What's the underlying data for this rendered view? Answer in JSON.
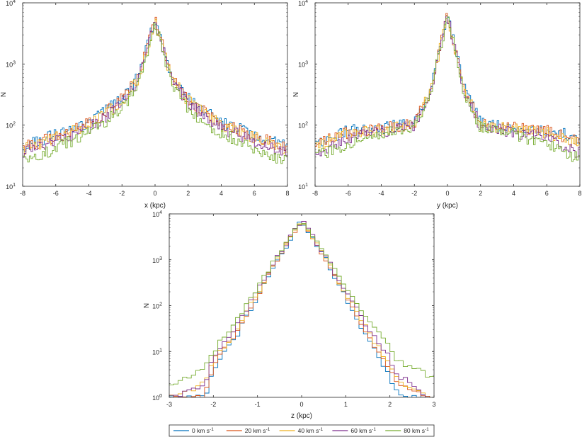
{
  "legend": [
    {
      "name": "0 km s",
      "sup": "-1",
      "color": "#0072BD"
    },
    {
      "name": "20 km s",
      "sup": "-1",
      "color": "#D95319"
    },
    {
      "name": "40 km s",
      "sup": "-1",
      "color": "#EDB120"
    },
    {
      "name": "60 km s",
      "sup": "-1",
      "color": "#7E2F8E"
    },
    {
      "name": "80 km s",
      "sup": "-1",
      "color": "#77AC30"
    }
  ],
  "chart_data": [
    {
      "type": "histogram-stairs",
      "xlabel": "x (kpc)",
      "ylabel": "N",
      "xlim": [
        -8,
        8
      ],
      "ylim": [
        10,
        10000
      ],
      "yscale": "log",
      "xticks": [
        "-8",
        "-6",
        "-4",
        "-2",
        "0",
        "2",
        "4",
        "6",
        "8"
      ],
      "yticks": [
        {
          "base": "10",
          "exp": "1"
        },
        {
          "base": "10",
          "exp": "2"
        },
        {
          "base": "10",
          "exp": "3"
        },
        {
          "base": "10",
          "exp": "4"
        }
      ],
      "x_knots": [
        -8,
        -6,
        -4,
        -3,
        -2,
        -1,
        0,
        1,
        2,
        3,
        4,
        6,
        8
      ],
      "series": [
        {
          "name": "0 km s-1",
          "n": [
            45,
            70,
            110,
            170,
            280,
            620,
            5500,
            620,
            280,
            170,
            110,
            70,
            45
          ]
        },
        {
          "name": "20 km s-1",
          "n": [
            42,
            66,
            105,
            160,
            270,
            600,
            5300,
            600,
            270,
            160,
            105,
            66,
            42
          ]
        },
        {
          "name": "40 km s-1",
          "n": [
            40,
            62,
            100,
            150,
            250,
            570,
            5100,
            570,
            250,
            150,
            100,
            62,
            40
          ]
        },
        {
          "name": "60 km s-1",
          "n": [
            35,
            55,
            90,
            135,
            230,
            540,
            5000,
            540,
            230,
            135,
            90,
            55,
            35
          ]
        },
        {
          "name": "80 km s-1",
          "n": [
            25,
            42,
            75,
            110,
            190,
            470,
            4800,
            470,
            190,
            110,
            75,
            42,
            25
          ]
        }
      ]
    },
    {
      "type": "histogram-stairs",
      "xlabel": "y (kpc)",
      "ylabel": "N",
      "xlim": [
        -8,
        8
      ],
      "ylim": [
        10,
        10000
      ],
      "yscale": "log",
      "xticks": [
        "-8",
        "-6",
        "-4",
        "-2",
        "0",
        "2",
        "4",
        "6",
        "8"
      ],
      "yticks": [
        {
          "base": "10",
          "exp": "1"
        },
        {
          "base": "10",
          "exp": "2"
        },
        {
          "base": "10",
          "exp": "3"
        },
        {
          "base": "10",
          "exp": "4"
        }
      ],
      "x_knots": [
        -8,
        -6,
        -4,
        -3,
        -2,
        -1,
        0,
        1,
        2,
        3,
        4,
        6,
        8
      ],
      "series": [
        {
          "name": "0 km s-1",
          "n": [
            50,
            80,
            90,
            100,
            110,
            400,
            6500,
            400,
            110,
            100,
            95,
            85,
            60
          ]
        },
        {
          "name": "20 km s-1",
          "n": [
            48,
            75,
            88,
            95,
            105,
            390,
            6300,
            390,
            105,
            95,
            90,
            80,
            55
          ]
        },
        {
          "name": "40 km s-1",
          "n": [
            45,
            70,
            85,
            92,
            100,
            380,
            6100,
            380,
            100,
            92,
            85,
            75,
            50
          ]
        },
        {
          "name": "60 km s-1",
          "n": [
            35,
            60,
            78,
            88,
            95,
            370,
            6000,
            370,
            95,
            88,
            78,
            60,
            35
          ]
        },
        {
          "name": "80 km s-1",
          "n": [
            30,
            50,
            70,
            80,
            90,
            360,
            5800,
            360,
            90,
            80,
            70,
            50,
            28
          ]
        }
      ]
    },
    {
      "type": "histogram-stairs",
      "xlabel": "z (kpc)",
      "ylabel": "N",
      "xlim": [
        -3,
        3
      ],
      "ylim": [
        1,
        10000
      ],
      "yscale": "log",
      "xticks": [
        "-3",
        "-2",
        "-1",
        "0",
        "1",
        "2",
        "3"
      ],
      "yticks": [
        {
          "base": "10",
          "exp": "0"
        },
        {
          "base": "10",
          "exp": "1"
        },
        {
          "base": "10",
          "exp": "2"
        },
        {
          "base": "10",
          "exp": "3"
        },
        {
          "base": "10",
          "exp": "4"
        }
      ],
      "x_knots": [
        -2.9,
        -2.2,
        -2.0,
        -1.5,
        -1.0,
        -0.5,
        0,
        0.5,
        1.0,
        1.5,
        2.0,
        2.2,
        2.9
      ],
      "series": [
        {
          "name": "0 km s-1",
          "n": [
            1,
            1,
            4,
            20,
            150,
            1200,
            7000,
            1200,
            150,
            20,
            3,
            1,
            1
          ]
        },
        {
          "name": "20 km s-1",
          "n": [
            1,
            1,
            5,
            24,
            170,
            1250,
            7200,
            1250,
            170,
            24,
            4,
            2,
            1
          ]
        },
        {
          "name": "40 km s-1",
          "n": [
            1,
            2,
            6,
            28,
            190,
            1300,
            7300,
            1300,
            190,
            28,
            5,
            2,
            1
          ]
        },
        {
          "name": "60 km s-1",
          "n": [
            1,
            2,
            7,
            33,
            210,
            1350,
            7400,
            1350,
            210,
            33,
            7,
            3,
            1
          ]
        },
        {
          "name": "80 km s-1",
          "n": [
            2,
            4,
            10,
            45,
            250,
            1400,
            7500,
            1400,
            250,
            45,
            12,
            6,
            3
          ]
        }
      ]
    }
  ]
}
